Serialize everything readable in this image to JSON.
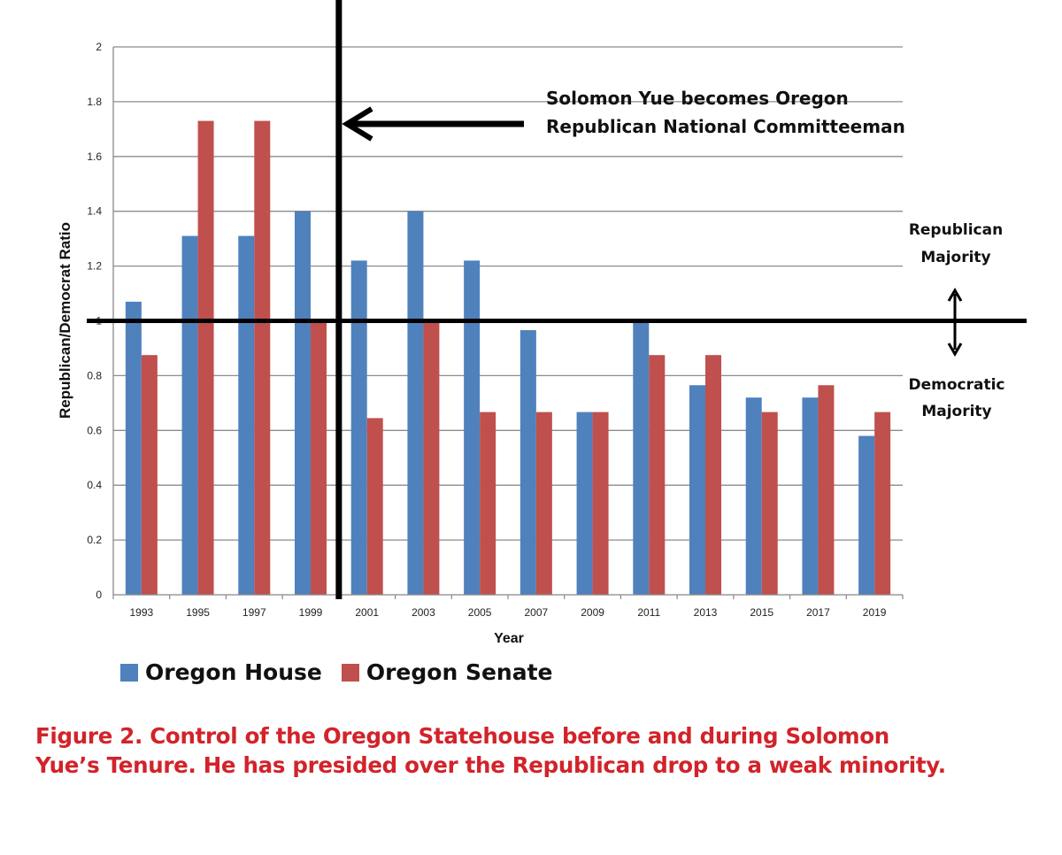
{
  "chart_data": {
    "type": "bar",
    "title": "",
    "xlabel": "Year",
    "ylabel": "Republican/Democrat Ratio",
    "ylim": [
      0,
      2
    ],
    "yticks": [
      "0",
      "0.2",
      "0.4",
      "0.6",
      "0.8",
      "1",
      "1.2",
      "1.4",
      "1.6",
      "1.8",
      "2"
    ],
    "grid": true,
    "categories": [
      "1993",
      "1995",
      "1997",
      "1999",
      "2001",
      "2003",
      "2005",
      "2007",
      "2009",
      "2011",
      "2013",
      "2015",
      "2017",
      "2019"
    ],
    "series": [
      {
        "name": "Oregon House",
        "color": "#4f81bd",
        "values": [
          1.07,
          1.31,
          1.31,
          1.4,
          1.22,
          1.4,
          1.22,
          0.966,
          0.667,
          1.0,
          0.765,
          0.72,
          0.72,
          0.58
        ]
      },
      {
        "name": "Oregon Senate",
        "color": "#c0504d",
        "values": [
          0.875,
          1.73,
          1.73,
          1.0,
          0.645,
          1.0,
          0.667,
          0.667,
          0.667,
          0.875,
          0.875,
          0.667,
          0.765,
          0.667
        ]
      }
    ],
    "legend_position": "bottom-left",
    "reference_line_value": 1,
    "event_after_category": "1999",
    "annotations": {
      "event_line1": "Solomon Yue becomes Oregon",
      "event_line2": "Republican National Committeeman",
      "rep_line1": "Republican",
      "rep_line2": "Majority",
      "dem_line1": "Democratic",
      "dem_line2": "Majority"
    }
  },
  "caption": {
    "line1": "Figure 2. Control of the Oregon Statehouse before and during Solomon",
    "line2": "Yue’s Tenure. He has presided over the Republican drop to a weak minority."
  }
}
